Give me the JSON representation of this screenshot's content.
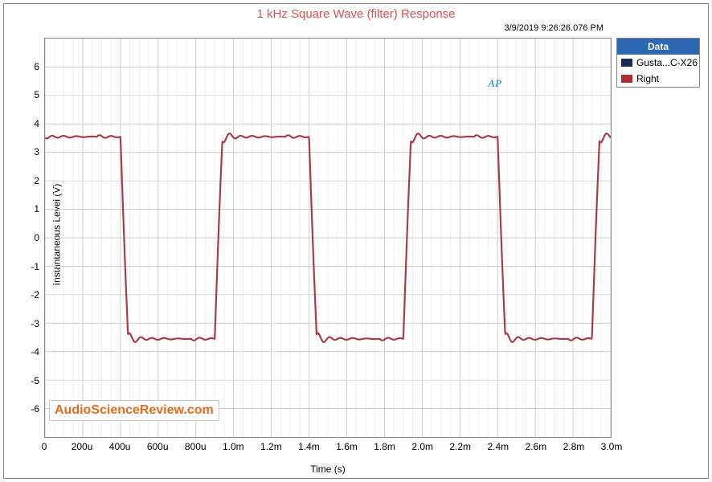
{
  "title": "1 kHz Square Wave (filter) Response",
  "title_color": "#d9534f",
  "timestamp": "3/9/2019 9:26:26.076 PM",
  "yaxis_label": "Instantaneous Level (V)",
  "xaxis_label": "Time (s)",
  "footer_brand": "AudioScienceReview.com",
  "footer_color": "#e36c1e",
  "logo_text": "AP",
  "logo_color": "#4a9acf",
  "legend_title": "Data",
  "legend_header_bg": "#2e67b1",
  "series": [
    {
      "label": "Gusta...C-X26",
      "color": "#1a2a50"
    },
    {
      "label": "Right",
      "color": "#b02b33"
    }
  ],
  "background_color": "#ffffff",
  "grid_minor_color": "#f0f0f0",
  "grid_major_color": "#d0d0d0",
  "axis_color": "#888888",
  "text_color": "#333333",
  "xlim": [
    0,
    0.003
  ],
  "ylim": [
    -7,
    7
  ],
  "xticks": [
    {
      "v": 0,
      "l": "0"
    },
    {
      "v": 0.0002,
      "l": "200u"
    },
    {
      "v": 0.0004,
      "l": "400u"
    },
    {
      "v": 0.0006,
      "l": "600u"
    },
    {
      "v": 0.0008,
      "l": "800u"
    },
    {
      "v": 0.001,
      "l": "1.0m"
    },
    {
      "v": 0.0012,
      "l": "1.2m"
    },
    {
      "v": 0.0014,
      "l": "1.4m"
    },
    {
      "v": 0.0016,
      "l": "1.6m"
    },
    {
      "v": 0.0018,
      "l": "1.8m"
    },
    {
      "v": 0.002,
      "l": "2.0m"
    },
    {
      "v": 0.0022,
      "l": "2.2m"
    },
    {
      "v": 0.0024,
      "l": "2.4m"
    },
    {
      "v": 0.0026,
      "l": "2.6m"
    },
    {
      "v": 0.0028,
      "l": "2.8m"
    },
    {
      "v": 0.003,
      "l": "3.0m"
    }
  ],
  "yticks": [
    {
      "v": -6,
      "l": "-6"
    },
    {
      "v": -5,
      "l": "-5"
    },
    {
      "v": -4,
      "l": "-4"
    },
    {
      "v": -3,
      "l": "-3"
    },
    {
      "v": -2,
      "l": "-2"
    },
    {
      "v": -1,
      "l": "-1"
    },
    {
      "v": 0,
      "l": "0"
    },
    {
      "v": 1,
      "l": "1"
    },
    {
      "v": 2,
      "l": "2"
    },
    {
      "v": 3,
      "l": "3"
    },
    {
      "v": 4,
      "l": "4"
    },
    {
      "v": 5,
      "l": "5"
    },
    {
      "v": 6,
      "l": "6"
    }
  ],
  "minor_x_step": 5e-05,
  "waveform": {
    "line_color": "#a83c48",
    "line_width": 2.2,
    "period": 0.001,
    "phase_offset": -0.0001,
    "high": 3.55,
    "low": -3.55,
    "overshoot": 0.35,
    "ripple_amp": 0.12,
    "ripple_count": 8,
    "edge_width": 4e-05
  }
}
